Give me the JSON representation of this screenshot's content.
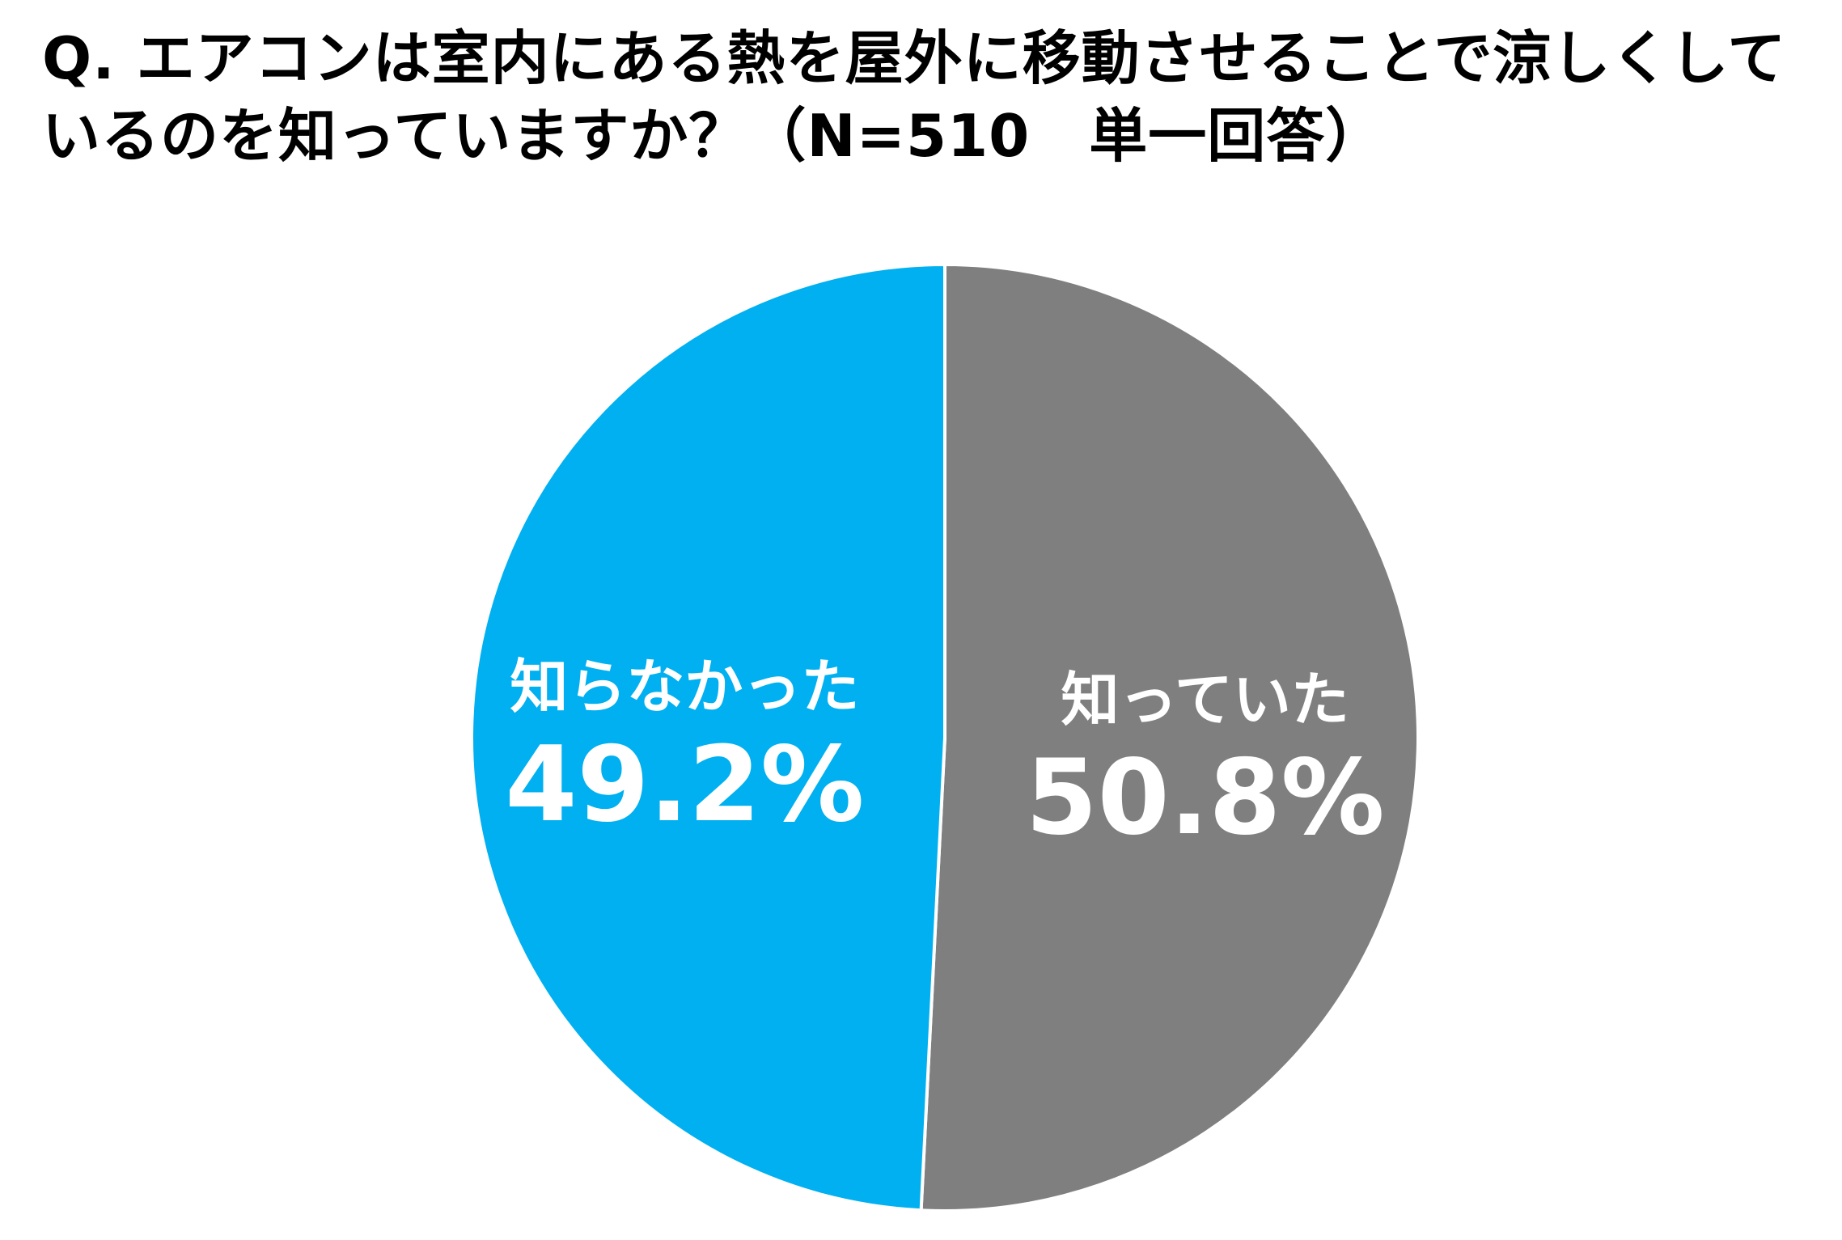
{
  "chart_data": {
    "type": "pie",
    "title": "Q.  エアコンは室内にある熱を屋外に移動させることで涼しくしているのを知っていますか？（N=510　単一回答）",
    "start_angle_deg": 0,
    "direction": "clockwise",
    "slices": [
      {
        "label": "知っていた",
        "value": 50.8,
        "value_label": "50.8%",
        "color": "#7f7f7f"
      },
      {
        "label": "知らなかった",
        "value": 49.2,
        "value_label": "49.2%",
        "color": "#00b0f0"
      }
    ],
    "legend": "none"
  }
}
